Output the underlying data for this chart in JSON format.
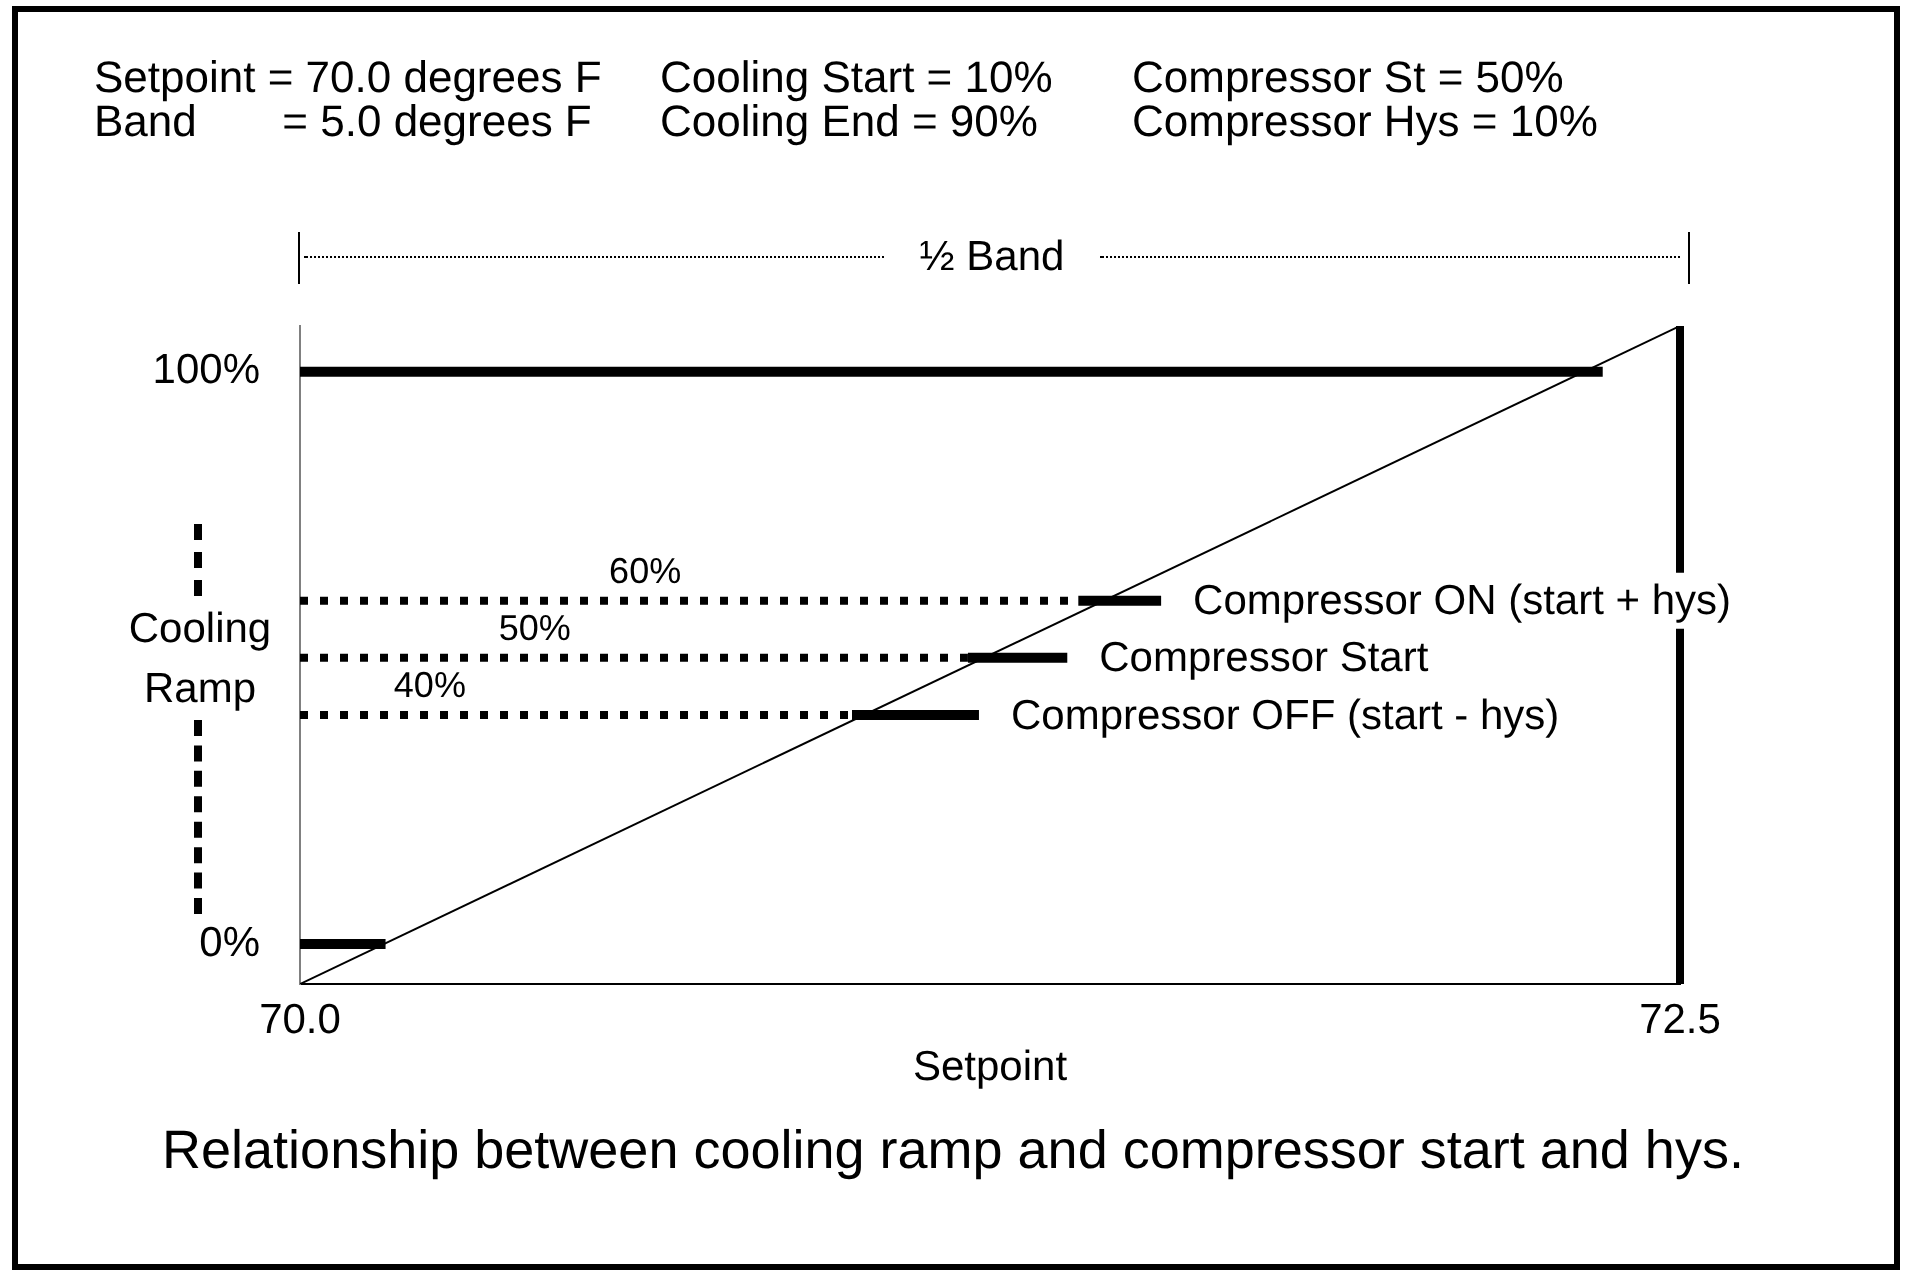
{
  "chart_data": {
    "type": "line",
    "xlabel": "Setpoint",
    "ylabel": "Cooling Ramp",
    "xlim": [
      70,
      72.5
    ],
    "xticks": [
      {
        "value": 70,
        "label": "70.0"
      },
      {
        "value": 72.5,
        "label": "72.5"
      }
    ],
    "ylim": [
      -7,
      108
    ],
    "yticks": [
      {
        "value": 0,
        "label": "0%"
      },
      {
        "value": 100,
        "label": "100%"
      }
    ],
    "grid": false,
    "legend": false,
    "marker": "none",
    "series": [
      {
        "color": "#000000",
        "x": [
          70,
          72.5
        ],
        "values": [
          -7,
          108
        ],
        "line_style": "solid"
      },
      {
        "color": "#000000",
        "x": [
          70,
          72.36
        ],
        "values": [
          100,
          100
        ],
        "line_style": "solid"
      },
      {
        "color": "#000000",
        "x": [
          70,
          70.155
        ],
        "values": [
          0,
          0
        ],
        "line_style": "solid"
      },
      {
        "color": "#000000",
        "x": [
          70,
          71.41
        ],
        "values": [
          60,
          60
        ],
        "line_style": "dotted"
      },
      {
        "color": "#000000",
        "x": [
          71.41,
          71.56
        ],
        "values": [
          60,
          60
        ],
        "line_style": "solid"
      },
      {
        "color": "#000000",
        "x": [
          70,
          71.21
        ],
        "values": [
          50,
          50
        ],
        "line_style": "dotted"
      },
      {
        "color": "#000000",
        "x": [
          71.21,
          71.39
        ],
        "values": [
          50,
          50
        ],
        "line_style": "solid"
      },
      {
        "color": "#000000",
        "x": [
          70,
          71.0
        ],
        "values": [
          40,
          40
        ],
        "line_style": "dotted"
      },
      {
        "color": "#000000",
        "x": [
          71.0,
          71.23
        ],
        "values": [
          40,
          40
        ],
        "line_style": "solid"
      }
    ],
    "ref_lines": [
      {
        "axis": "x",
        "value": 72.5,
        "color": "#000000"
      }
    ],
    "annotations": [
      "Setpoint = 70.0 degrees F",
      "Cooling Start = 10%",
      "Compressor St = 50%",
      "Band       = 5.0 degrees F",
      "Cooling End = 90%",
      "Compressor Hys = 10%",
      "½ Band",
      "Relationship between cooling ramp and compressor start and hys.",
      {
        "text": "60%",
        "x": 70.56,
        "y": 60
      },
      {
        "text": "50%",
        "x": 70.36,
        "y": 50
      },
      {
        "text": "40%",
        "x": 70.17,
        "y": 40
      },
      {
        "text": "Compressor ON (start + hys)",
        "x": 71.56,
        "y": 60
      },
      {
        "text": "Compressor Start",
        "x": 71.39,
        "y": 50
      },
      {
        "text": "Compressor OFF (start - hys)",
        "x": 71.23,
        "y": 40
      }
    ]
  }
}
